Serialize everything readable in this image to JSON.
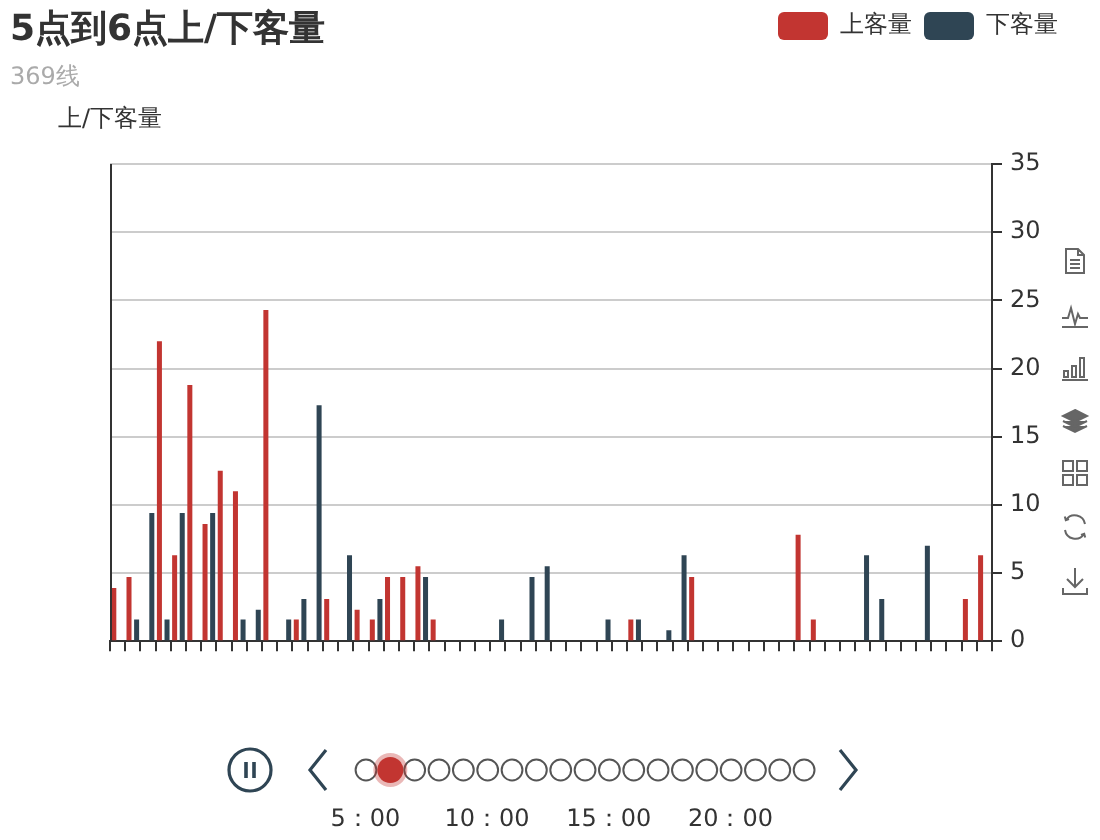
{
  "chart_data": {
    "type": "bar",
    "title": "5点到6点上/下客量",
    "subtitle": "369线",
    "ylabel": "上/下客量",
    "categories": [
      null,
      null,
      null,
      null,
      null,
      null,
      null,
      null,
      null,
      null,
      null,
      null,
      null,
      null,
      null,
      null,
      null,
      null,
      null,
      null,
      null,
      null,
      null,
      null,
      null,
      null,
      null,
      null,
      null,
      null,
      null,
      null,
      null,
      null,
      null,
      null,
      null,
      null,
      null,
      null,
      null,
      null,
      null,
      null,
      null,
      null,
      null,
      null,
      null,
      null,
      null,
      null,
      null,
      null,
      null,
      null,
      null,
      null
    ],
    "series": [
      {
        "name": "上客量",
        "color": "#c23531",
        "values": [
          3.9,
          4.7,
          null,
          22,
          6.3,
          18.8,
          8.6,
          12.5,
          11,
          null,
          24.3,
          null,
          1.6,
          null,
          3.1,
          null,
          2.3,
          1.6,
          4.7,
          4.7,
          5.5,
          1.6,
          null,
          null,
          null,
          null,
          null,
          null,
          null,
          null,
          null,
          null,
          null,
          null,
          1.6,
          null,
          null,
          null,
          4.7,
          null,
          null,
          null,
          null,
          null,
          null,
          7.8,
          1.6,
          null,
          null,
          null,
          null,
          null,
          null,
          null,
          null,
          null,
          3.1,
          6.3
        ]
      },
      {
        "name": "下客量",
        "color": "#2f4554",
        "values": [
          null,
          1.6,
          9.4,
          1.6,
          9.4,
          null,
          9.4,
          null,
          1.6,
          2.3,
          null,
          1.6,
          3.1,
          17.3,
          null,
          6.3,
          null,
          3.1,
          null,
          null,
          4.7,
          null,
          null,
          null,
          null,
          1.6,
          null,
          4.7,
          5.5,
          null,
          null,
          null,
          1.6,
          null,
          1.6,
          null,
          0.8,
          6.3,
          null,
          null,
          null,
          null,
          null,
          null,
          null,
          null,
          null,
          null,
          null,
          6.3,
          3.1,
          null,
          null,
          7,
          null,
          null,
          null,
          null
        ]
      }
    ],
    "ylim": [
      0,
      35
    ],
    "yticks": [
      0,
      5,
      10,
      15,
      20,
      25,
      30,
      35
    ],
    "grid": "y",
    "legend": "top right",
    "annotations": [
      "5：00",
      "10：00",
      "15：00",
      "20：00"
    ]
  }
}
